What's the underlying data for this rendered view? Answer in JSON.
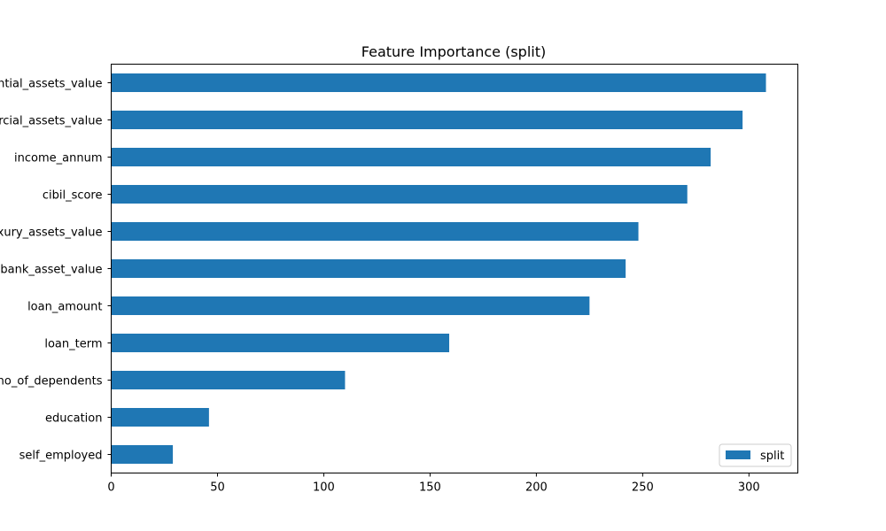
{
  "chart_data": {
    "type": "bar",
    "orientation": "horizontal",
    "title": "Feature Importance (split)",
    "xlabel": "",
    "ylabel": "",
    "categories": [
      "self_employed",
      "education",
      "no_of_dependents",
      "loan_term",
      "loan_amount",
      "bank_asset_value",
      "luxury_assets_value",
      "cibil_score",
      "income_annum",
      "commercial_assets_value",
      "residential_assets_value"
    ],
    "series": [
      {
        "name": "split",
        "values": [
          29,
          46,
          110,
          159,
          225,
          242,
          248,
          271,
          282,
          297,
          308
        ]
      }
    ],
    "xlim": [
      0,
      323
    ],
    "xticks": [
      0,
      50,
      100,
      150,
      200,
      250,
      300
    ],
    "grid": false,
    "legend_position": "lower-right",
    "colors": {
      "bar": "#1f77b4",
      "axis": "#000000",
      "legend_border": "#cccccc"
    }
  }
}
